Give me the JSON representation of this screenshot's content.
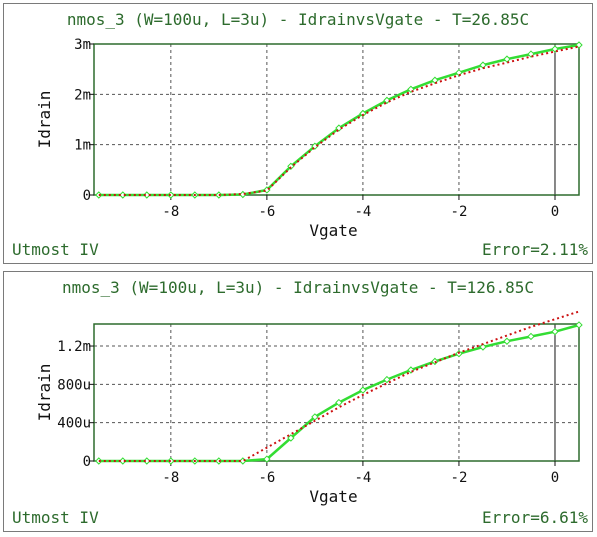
{
  "colors": {
    "frame": "#2d6b2d",
    "title_text": "#2d6b2d",
    "grid": "#555555",
    "measured": "#33dd33",
    "simulated": "#cc1111",
    "zero_line": "#111111"
  },
  "chart_data": [
    {
      "type": "line",
      "title": "nmos_3 (W=100u, L=3u) - IdrainvsVgate - T=26.85C",
      "xlabel": "Vgate",
      "ylabel": "Idrain",
      "model_label": "Utmost IV",
      "error_label": "Error=2.11%",
      "xlim": [
        -9.6,
        0.5
      ],
      "ylim": [
        0,
        0.003
      ],
      "xticks": [
        -8,
        -6,
        -4,
        -2,
        0
      ],
      "xtick_labels": [
        "-8",
        "-6",
        "-4",
        "-2",
        "0"
      ],
      "yticks": [
        0,
        0.001,
        0.002,
        0.003
      ],
      "ytick_labels": [
        "0",
        "1m",
        "2m",
        "3m"
      ],
      "grid": true,
      "series": [
        {
          "style": "measured",
          "x": [
            -9.5,
            -9,
            -8.5,
            -8,
            -7.5,
            -7,
            -6.5,
            -6,
            -5.5,
            -5,
            -4.5,
            -4,
            -3.5,
            -3,
            -2.5,
            -2,
            -1.5,
            -1,
            -0.5,
            0,
            0.5
          ],
          "y": [
            0,
            0,
            0,
            0,
            0,
            0,
            1e-05,
            0.0001,
            0.00057,
            0.00097,
            0.00133,
            0.00162,
            0.00188,
            0.0021,
            0.00228,
            0.00243,
            0.00258,
            0.0027,
            0.0028,
            0.0029,
            0.00298
          ]
        },
        {
          "style": "simulated",
          "x": [
            -9.5,
            -9,
            -8.5,
            -8,
            -7.5,
            -7,
            -6.5,
            -6,
            -5.5,
            -5,
            -4.5,
            -4,
            -3.5,
            -3,
            -2.5,
            -2,
            -1.5,
            -1,
            -0.5,
            0,
            0.5
          ],
          "y": [
            0,
            0,
            0,
            0,
            0,
            0,
            2e-05,
            9e-05,
            0.00055,
            0.00095,
            0.0013,
            0.00159,
            0.00184,
            0.00205,
            0.00222,
            0.00238,
            0.00252,
            0.00263,
            0.00275,
            0.00285,
            0.00295
          ]
        }
      ]
    },
    {
      "type": "line",
      "title": "nmos_3 (W=100u, L=3u) - IdrainvsVgate - T=126.85C",
      "xlabel": "Vgate",
      "ylabel": "Idrain",
      "model_label": "Utmost IV",
      "error_label": "Error=6.61%",
      "xlim": [
        -9.6,
        0.5
      ],
      "ylim": [
        0,
        0.00143
      ],
      "xticks": [
        -8,
        -6,
        -4,
        -2,
        0
      ],
      "xtick_labels": [
        "-8",
        "-6",
        "-4",
        "-2",
        "0"
      ],
      "yticks": [
        0,
        0.0004,
        0.0008,
        0.0012
      ],
      "ytick_labels": [
        "0",
        "400u",
        "800u",
        "1.2m"
      ],
      "grid": true,
      "series": [
        {
          "style": "measured",
          "x": [
            -9.5,
            -9,
            -8.5,
            -8,
            -7.5,
            -7,
            -6.5,
            -6,
            -5.5,
            -5,
            -4.5,
            -4,
            -3.5,
            -3,
            -2.5,
            -2,
            -1.5,
            -1,
            -0.5,
            0,
            0.5
          ],
          "y": [
            0,
            0,
            0,
            0,
            0,
            0,
            0,
            2e-05,
            0.00024,
            0.00046,
            0.00061,
            0.00074,
            0.00085,
            0.00095,
            0.00104,
            0.00112,
            0.00119,
            0.00125,
            0.0013,
            0.00135,
            0.00142
          ]
        },
        {
          "style": "simulated",
          "x": [
            -9.5,
            -9,
            -8.5,
            -8,
            -7.5,
            -7,
            -6.5,
            -6,
            -5.5,
            -5,
            -4.5,
            -4,
            -3.5,
            -3,
            -2.5,
            -2,
            -1.5,
            -1,
            -0.5,
            0,
            0.5
          ],
          "y": [
            0,
            0,
            0,
            0,
            0,
            0,
            0,
            0.00014,
            0.00028,
            0.00042,
            0.00056,
            0.00069,
            0.00081,
            0.00093,
            0.00103,
            0.00113,
            0.00122,
            0.00131,
            0.0014,
            0.00148,
            0.00156
          ]
        }
      ]
    }
  ]
}
